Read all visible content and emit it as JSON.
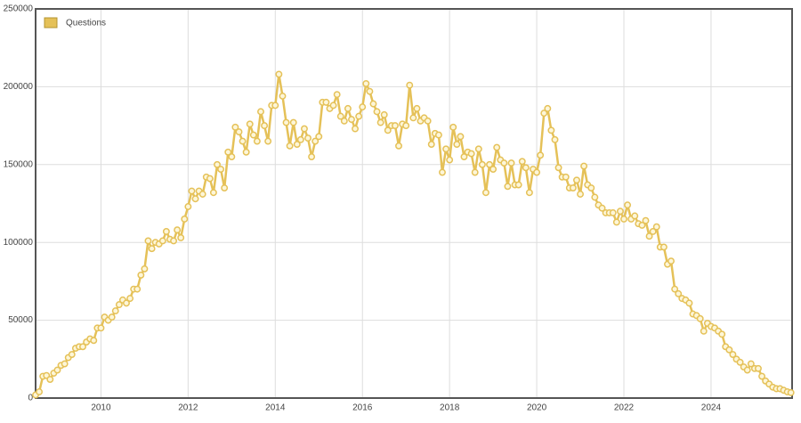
{
  "chart_data": {
    "type": "line",
    "x": [
      2008.5,
      2008.583,
      2008.667,
      2008.75,
      2008.833,
      2008.917,
      2009,
      2009.083,
      2009.167,
      2009.25,
      2009.333,
      2009.417,
      2009.5,
      2009.583,
      2009.667,
      2009.75,
      2009.833,
      2009.917,
      2010,
      2010.083,
      2010.167,
      2010.25,
      2010.333,
      2010.417,
      2010.5,
      2010.583,
      2010.667,
      2010.75,
      2010.833,
      2010.917,
      2011,
      2011.083,
      2011.167,
      2011.25,
      2011.333,
      2011.417,
      2011.5,
      2011.583,
      2011.667,
      2011.75,
      2011.833,
      2011.917,
      2012,
      2012.083,
      2012.167,
      2012.25,
      2012.333,
      2012.417,
      2012.5,
      2012.583,
      2012.667,
      2012.75,
      2012.833,
      2012.917,
      2013,
      2013.083,
      2013.167,
      2013.25,
      2013.333,
      2013.417,
      2013.5,
      2013.583,
      2013.667,
      2013.75,
      2013.833,
      2013.917,
      2014,
      2014.083,
      2014.167,
      2014.25,
      2014.333,
      2014.417,
      2014.5,
      2014.583,
      2014.667,
      2014.75,
      2014.833,
      2014.917,
      2015,
      2015.083,
      2015.167,
      2015.25,
      2015.333,
      2015.417,
      2015.5,
      2015.583,
      2015.667,
      2015.75,
      2015.833,
      2015.917,
      2016,
      2016.083,
      2016.167,
      2016.25,
      2016.333,
      2016.417,
      2016.5,
      2016.583,
      2016.667,
      2016.75,
      2016.833,
      2016.917,
      2017,
      2017.083,
      2017.167,
      2017.25,
      2017.333,
      2017.417,
      2017.5,
      2017.583,
      2017.667,
      2017.75,
      2017.833,
      2017.917,
      2018,
      2018.083,
      2018.167,
      2018.25,
      2018.333,
      2018.417,
      2018.5,
      2018.583,
      2018.667,
      2018.75,
      2018.833,
      2018.917,
      2019,
      2019.083,
      2019.167,
      2019.25,
      2019.333,
      2019.417,
      2019.5,
      2019.583,
      2019.667,
      2019.75,
      2019.833,
      2019.917,
      2020,
      2020.083,
      2020.167,
      2020.25,
      2020.333,
      2020.417,
      2020.5,
      2020.583,
      2020.667,
      2020.75,
      2020.833,
      2020.917,
      2021,
      2021.083,
      2021.167,
      2021.25,
      2021.333,
      2021.417,
      2021.5,
      2021.583,
      2021.667,
      2021.75,
      2021.833,
      2021.917,
      2022,
      2022.083,
      2022.167,
      2022.25,
      2022.333,
      2022.417,
      2022.5,
      2022.583,
      2022.667,
      2022.75,
      2022.833,
      2022.917,
      2023,
      2023.083,
      2023.167,
      2023.25,
      2023.333,
      2023.417,
      2023.5,
      2023.583,
      2023.667,
      2023.75,
      2023.833,
      2023.917,
      2024,
      2024.083,
      2024.167,
      2024.25,
      2024.333,
      2024.417,
      2024.5,
      2024.583,
      2024.667,
      2024.75,
      2024.833,
      2024.917,
      2025,
      2025.083,
      2025.167,
      2025.25,
      2025.333,
      2025.417,
      2025.5,
      2025.583,
      2025.667,
      2025.75,
      2025.833
    ],
    "series": [
      {
        "name": "Questions",
        "color": "#e5c158",
        "values": [
          2000,
          4000,
          14000,
          14500,
          12000,
          16000,
          18000,
          21000,
          22000,
          26000,
          28000,
          32000,
          33000,
          33000,
          36000,
          38000,
          37000,
          45000,
          45000,
          52000,
          50000,
          52000,
          56000,
          60000,
          63000,
          61000,
          64000,
          70000,
          70000,
          79000,
          83000,
          101000,
          96000,
          100000,
          99000,
          101000,
          107000,
          102000,
          101000,
          108000,
          103000,
          115000,
          123000,
          133000,
          128000,
          133000,
          131000,
          142000,
          141000,
          132000,
          150000,
          147000,
          135000,
          158000,
          155000,
          174000,
          171000,
          165000,
          158000,
          176000,
          169000,
          165000,
          184000,
          175000,
          165000,
          188000,
          188000,
          208000,
          194000,
          177000,
          162000,
          177000,
          163000,
          166000,
          173000,
          167000,
          155000,
          165000,
          168000,
          190000,
          190000,
          186000,
          188000,
          195000,
          181000,
          178000,
          186000,
          179000,
          173000,
          181000,
          187000,
          202000,
          197000,
          189000,
          184000,
          177000,
          182000,
          172000,
          175000,
          175000,
          162000,
          176000,
          175000,
          201000,
          180000,
          186000,
          178000,
          180000,
          178000,
          163000,
          170000,
          169000,
          145000,
          160000,
          153000,
          174000,
          163000,
          168000,
          155000,
          158000,
          157000,
          145000,
          160000,
          150000,
          132000,
          150000,
          147000,
          161000,
          153000,
          151000,
          136000,
          151000,
          137000,
          137000,
          152000,
          148000,
          132000,
          147000,
          145000,
          156000,
          183000,
          186000,
          172000,
          166000,
          148000,
          142000,
          142000,
          135000,
          135000,
          140000,
          131000,
          149000,
          137000,
          135000,
          129000,
          124000,
          122000,
          119000,
          119000,
          119000,
          113000,
          120000,
          115000,
          124000,
          115000,
          117000,
          112000,
          111000,
          114000,
          104000,
          107000,
          110000,
          97000,
          97000,
          86000,
          88000,
          70000,
          67000,
          64000,
          63000,
          61000,
          54000,
          53000,
          51000,
          43000,
          48000,
          46000,
          45000,
          43000,
          41000,
          33000,
          31000,
          28000,
          25000,
          23000,
          20000,
          18000,
          22000,
          19000,
          19000,
          14000,
          11000,
          9000,
          7000,
          6000,
          6000,
          5000,
          4000,
          3500
        ]
      }
    ],
    "xlim": [
      2008.5,
      2025.86
    ],
    "xticks": [
      2010,
      2012,
      2014,
      2016,
      2018,
      2020,
      2022,
      2024
    ],
    "ylim": [
      0,
      250000
    ],
    "yticks": [
      0,
      50000,
      100000,
      150000,
      200000,
      250000
    ],
    "grid": true,
    "legend": "upper left"
  }
}
